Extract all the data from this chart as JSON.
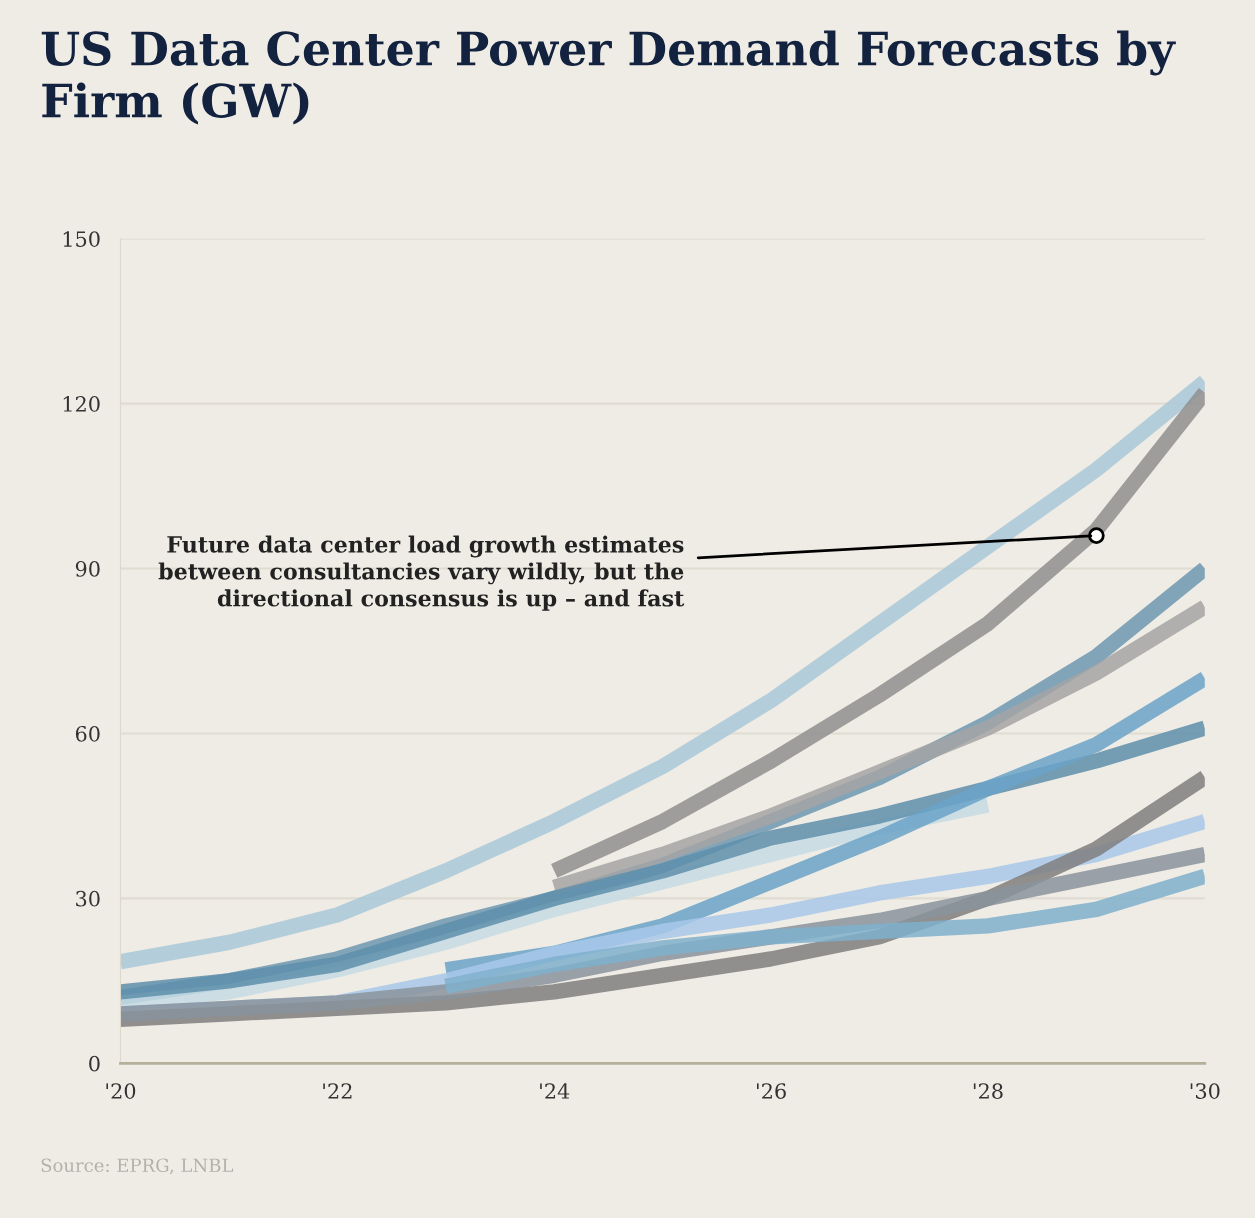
{
  "chart_data": {
    "type": "line",
    "title": "US Data Center Power Demand Forecasts by Firm (GW)",
    "x": [
      2020,
      2021,
      2022,
      2023,
      2024,
      2025,
      2026,
      2027,
      2028,
      2029,
      2030
    ],
    "xlim": [
      2020,
      2030
    ],
    "xticks": [
      {
        "value": 2020,
        "label": "'20"
      },
      {
        "value": 2022,
        "label": "'22"
      },
      {
        "value": 2024,
        "label": "'24"
      },
      {
        "value": 2026,
        "label": "'26"
      },
      {
        "value": 2028,
        "label": "'28"
      },
      {
        "value": 2030,
        "label": "'30"
      }
    ],
    "ylim": [
      0,
      150
    ],
    "yticks": [
      0,
      30,
      60,
      90,
      120,
      150
    ],
    "grid": "y",
    "line_style": "solid",
    "series": [
      {
        "color": "#a9c8d8",
        "values": [
          18.5,
          22,
          27,
          35,
          44,
          54,
          66,
          80,
          94,
          108,
          124
        ]
      },
      {
        "color": "#8f8f8f",
        "values": [
          null,
          null,
          null,
          null,
          35,
          44,
          55,
          67,
          80,
          97,
          122
        ]
      },
      {
        "color": "#6e98b0",
        "values": [
          12,
          15,
          19,
          25,
          30,
          36,
          44,
          52,
          62,
          74,
          90
        ]
      },
      {
        "color": "#a5a5a5",
        "values": [
          null,
          null,
          null,
          null,
          32,
          38,
          45,
          53,
          61,
          71,
          83
        ]
      },
      {
        "color": "#c6dce4",
        "values": [
          11,
          13,
          17,
          22,
          28,
          33,
          38,
          43,
          47,
          null,
          null
        ]
      },
      {
        "color": "#5e8fab",
        "values": [
          13,
          15,
          18,
          24,
          30,
          35,
          41,
          45,
          50,
          55,
          61
        ]
      },
      {
        "color": "#6aa3c8",
        "values": [
          null,
          null,
          null,
          17,
          20,
          25,
          33,
          41,
          50,
          58,
          70
        ]
      },
      {
        "color": "#a8c8ea",
        "values": [
          9,
          10,
          11,
          15,
          20,
          24,
          27,
          31,
          34,
          38,
          44
        ]
      },
      {
        "color": "#7f7f7f",
        "values": [
          8,
          9,
          10,
          11,
          13,
          16,
          19,
          23,
          30,
          39,
          52
        ]
      },
      {
        "color": "#8a939c",
        "values": [
          9,
          10,
          11,
          13,
          16,
          20,
          23,
          26,
          30,
          34,
          38
        ]
      },
      {
        "color": "#7fb0cc",
        "values": [
          null,
          null,
          null,
          14,
          18,
          21,
          23,
          24,
          25,
          28,
          34
        ]
      }
    ],
    "annotations": [
      {
        "text": "Future data center load growth estimates\nbetween consultancies vary wildly, but the\ndirectional consensus is up – and fast",
        "x": 2029,
        "y": 96
      },
      "Source: EPRG, LNBL"
    ]
  }
}
